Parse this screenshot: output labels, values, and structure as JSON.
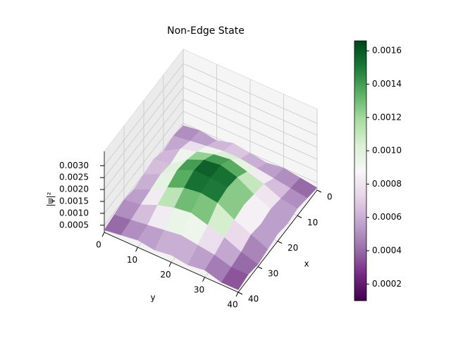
{
  "chart_data": {
    "type": "surface",
    "title": "Non-Edge State",
    "xlabel": "x",
    "ylabel": "y",
    "zlabel": "|ψ|²",
    "x": [
      0,
      5,
      10,
      15,
      20,
      25,
      30,
      35,
      40
    ],
    "y": [
      0,
      5,
      10,
      15,
      20,
      25,
      30,
      35,
      40
    ],
    "z": [
      [
        0.0004,
        0.0005,
        0.0004,
        0.0006,
        0.0005,
        0.0004,
        0.0005,
        0.0004,
        0.0003
      ],
      [
        0.0005,
        0.0006,
        0.0008,
        0.0007,
        0.0008,
        0.0007,
        0.0006,
        0.0005,
        0.0004
      ],
      [
        0.0004,
        0.0007,
        0.001,
        0.0012,
        0.0013,
        0.0011,
        0.0009,
        0.0006,
        0.0005
      ],
      [
        0.0006,
        0.0008,
        0.0012,
        0.0015,
        0.0016,
        0.0014,
        0.0011,
        0.0007,
        0.0004
      ],
      [
        0.0005,
        0.0008,
        0.0013,
        0.0016,
        0.0016,
        0.0015,
        0.0012,
        0.0008,
        0.0005
      ],
      [
        0.0004,
        0.0007,
        0.0011,
        0.0014,
        0.0015,
        0.0014,
        0.001,
        0.0007,
        0.0004
      ],
      [
        0.0005,
        0.0006,
        0.0009,
        0.001,
        0.0011,
        0.001,
        0.0008,
        0.0006,
        0.0005
      ],
      [
        0.0004,
        0.0005,
        0.0006,
        0.0007,
        0.0006,
        0.0007,
        0.0005,
        0.0004,
        0.0003
      ],
      [
        0.0003,
        0.0004,
        0.0005,
        0.0004,
        0.0005,
        0.0004,
        0.0003,
        0.0004,
        0.0003
      ]
    ],
    "xlim": [
      0,
      40
    ],
    "ylim": [
      0,
      40
    ],
    "zlim": [
      0.0002,
      0.0036
    ],
    "xticks": [
      0,
      10,
      20,
      30,
      40
    ],
    "yticks": [
      0,
      10,
      20,
      30,
      40
    ],
    "zticks": [
      0.0005,
      {
        "value": 0.001,
        "label": "0.0010"
      },
      0.0015,
      {
        "value": 0.002,
        "label": "0.0020"
      },
      0.0025,
      {
        "value": 0.003,
        "label": "0.0030"
      }
    ],
    "grid": true,
    "colormap": [
      "#40004b",
      "#762a83",
      "#9970ab",
      "#c2a5cf",
      "#e7d4e8",
      "#f7f7f7",
      "#d9f0d3",
      "#a6dba0",
      "#5aae61",
      "#1b7837",
      "#00441b"
    ],
    "clim": [
      0.0001,
      0.00166
    ],
    "colorbar_ticks": [
      0.0002,
      0.0004,
      0.0006,
      0.0008,
      {
        "value": 0.001,
        "label": "0.0010"
      },
      0.0012,
      0.0014,
      0.0016
    ]
  }
}
